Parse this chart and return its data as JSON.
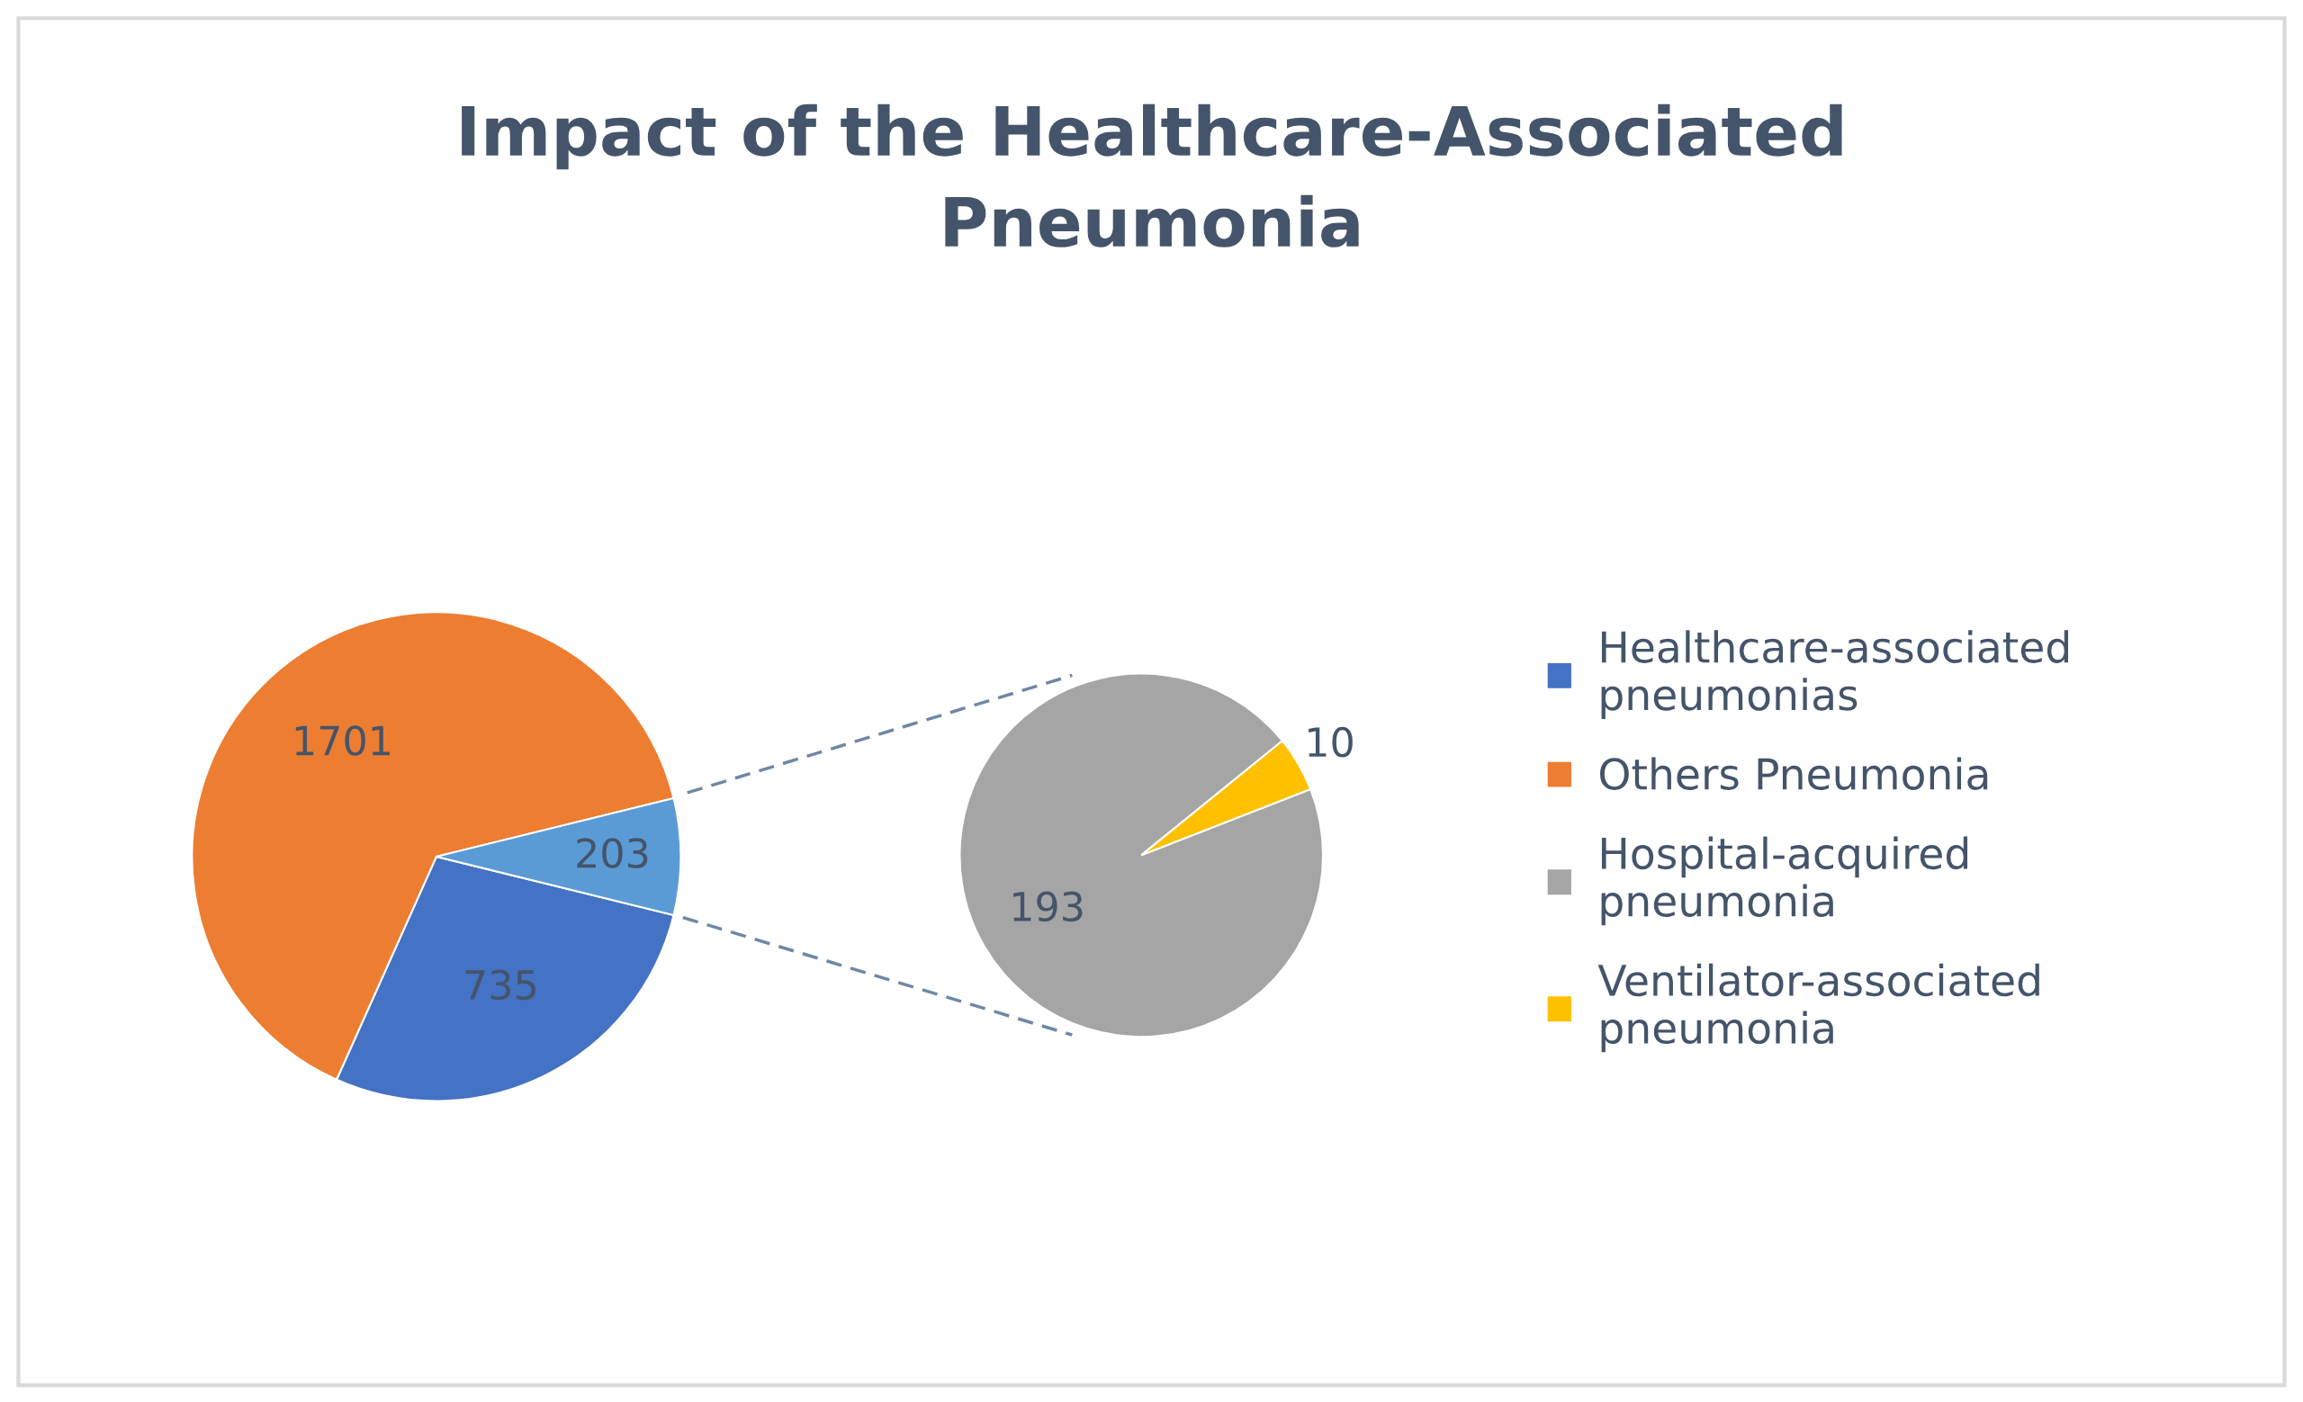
{
  "chart_data": [
    {
      "type": "pie",
      "title": "Impact of the Healthcare-Associated Pneumonia",
      "categories": [
        "Healthcare-associated pneumonias",
        "Others Pneumonia",
        null
      ],
      "values": [
        735,
        1701,
        203
      ],
      "colors": [
        "#4472c4",
        "#ed7d31",
        "#5b9bd5"
      ],
      "data_labels": true,
      "legend": "right"
    },
    {
      "type": "pie",
      "categories": [
        "Hospital-acquired pneumonia",
        "Ventilator-associated pneumonia"
      ],
      "values": [
        193,
        10
      ],
      "colors": [
        "#a5a5a5",
        "#ffc000"
      ],
      "data_labels": true,
      "legend": "right"
    }
  ]
}
